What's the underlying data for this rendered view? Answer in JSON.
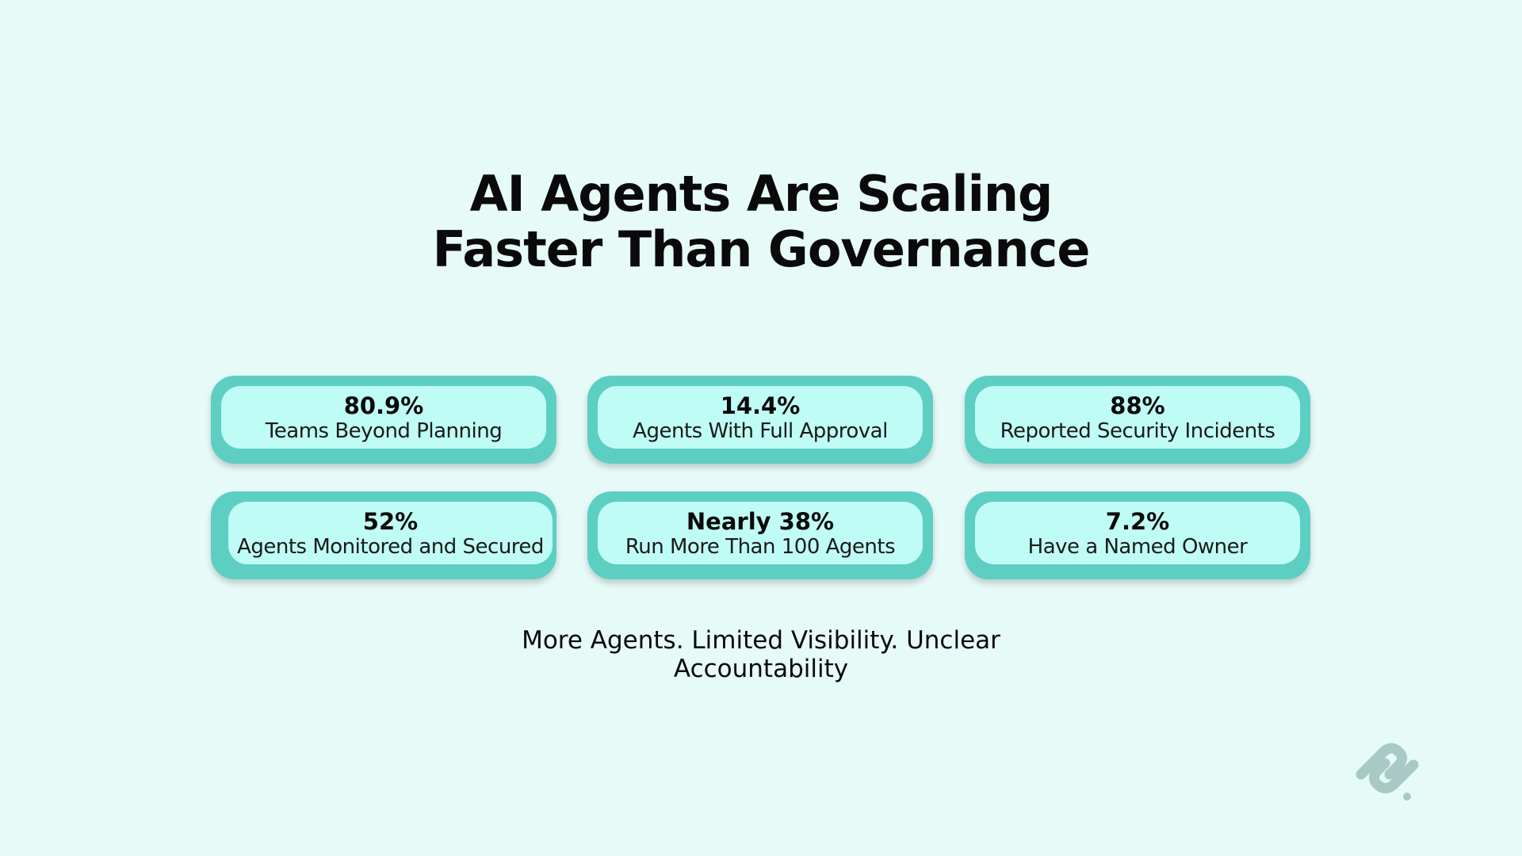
{
  "title": {
    "lines": [
      "AI Agents Are Scaling",
      "Faster Than Governance"
    ]
  },
  "stats": [
    {
      "value": "80.9%",
      "label": "Teams Beyond Planning"
    },
    {
      "value": "14.4%",
      "label": "Agents With Full Approval"
    },
    {
      "value": "88%",
      "label": "Reported Security Incidents"
    },
    {
      "value": "52%",
      "label": "Agents Monitored and Secured"
    },
    {
      "value": "Nearly 38%",
      "label": "Run More Than 100 Agents"
    },
    {
      "value": "7.2%",
      "label": "Have a Named Owner"
    }
  ],
  "footer": {
    "lines": [
      "More Agents. Limited Visibility. Unclear",
      "Accountability"
    ]
  }
}
